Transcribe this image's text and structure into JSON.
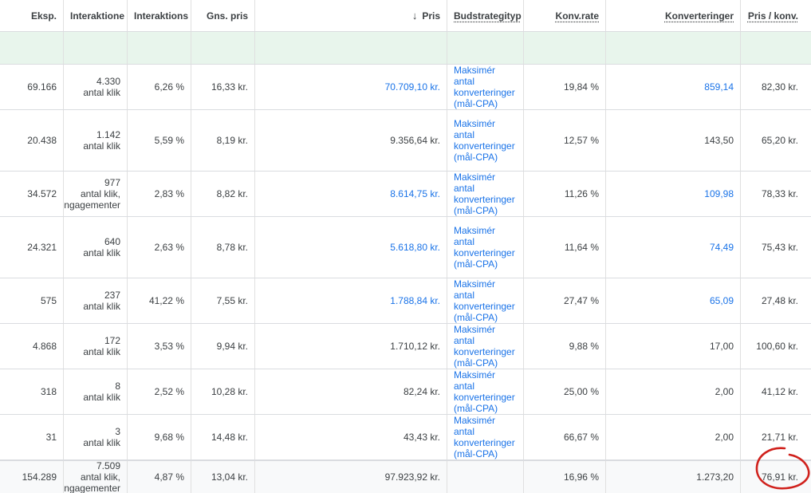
{
  "headers": {
    "eksp": "Eksp.",
    "interaktioner": "Interaktione",
    "interaktionsrate": "Interaktions",
    "gns_pris": "Gns. pris",
    "pris": "Pris",
    "budstrategi": "Budstrategityp",
    "konv_rate": "Konv.rate",
    "konverteringer": "Konverteringer",
    "pris_konv": "Pris / konv."
  },
  "sort_icon": "arrow-down-icon",
  "rows": [
    {
      "eksp": "69.166",
      "int_num": "4.330",
      "int_label": "antal klik",
      "int_rate": "6,26 %",
      "gns": "16,33 kr.",
      "pris": "70.709,10 kr.",
      "strategy": [
        "Maksimér",
        "antal",
        "konverteringer",
        "(mål-CPA)"
      ],
      "konv_rate": "19,84 %",
      "konv": "859,14",
      "pris_konv": "82,30 kr."
    },
    {
      "eksp": "20.438",
      "int_num": "1.142",
      "int_label": "antal klik",
      "int_rate": "5,59 %",
      "gns": "8,19 kr.",
      "pris": "9.356,64 kr.",
      "strategy": [
        "Maksimér",
        "antal",
        "konverteringer",
        "(mål-CPA)"
      ],
      "konv_rate": "12,57 %",
      "konv": "143,50",
      "pris_konv": "65,20 kr."
    },
    {
      "eksp": "34.572",
      "int_num": "977",
      "int_label": "antal klik,",
      "int_label2": "engagementer",
      "int_rate": "2,83 %",
      "gns": "8,82 kr.",
      "pris": "8.614,75 kr.",
      "strategy": [
        "Maksimér",
        "antal",
        "konverteringer",
        "(mål-CPA)"
      ],
      "konv_rate": "11,26 %",
      "konv": "109,98",
      "pris_konv": "78,33 kr."
    },
    {
      "eksp": "24.321",
      "int_num": "640",
      "int_label": "antal klik",
      "int_rate": "2,63 %",
      "gns": "8,78 kr.",
      "pris": "5.618,80 kr.",
      "strategy": [
        "Maksimér",
        "antal",
        "konverteringer",
        "(mål-CPA)"
      ],
      "konv_rate": "11,64 %",
      "konv": "74,49",
      "pris_konv": "75,43 kr."
    },
    {
      "eksp": "575",
      "int_num": "237",
      "int_label": "antal klik",
      "int_rate": "41,22 %",
      "gns": "7,55 kr.",
      "pris": "1.788,84 kr.",
      "strategy": [
        "Maksimér",
        "antal",
        "konverteringer",
        "(mål-CPA)"
      ],
      "konv_rate": "27,47 %",
      "konv": "65,09",
      "pris_konv": "27,48 kr."
    },
    {
      "eksp": "4.868",
      "int_num": "172",
      "int_label": "antal klik",
      "int_rate": "3,53 %",
      "gns": "9,94 kr.",
      "pris": "1.710,12 kr.",
      "strategy": [
        "Maksimér",
        "antal",
        "konverteringer",
        "(mål-CPA)"
      ],
      "konv_rate": "9,88 %",
      "konv": "17,00",
      "pris_konv": "100,60 kr."
    },
    {
      "eksp": "318",
      "int_num": "8",
      "int_label": "antal klik",
      "int_rate": "2,52 %",
      "gns": "10,28 kr.",
      "pris": "82,24 kr.",
      "strategy": [
        "Maksimér",
        "antal",
        "konverteringer",
        "(mål-CPA)"
      ],
      "konv_rate": "25,00 %",
      "konv": "2,00",
      "pris_konv": "41,12 kr."
    },
    {
      "eksp": "31",
      "int_num": "3",
      "int_label": "antal klik",
      "int_rate": "9,68 %",
      "gns": "14,48 kr.",
      "pris": "43,43 kr.",
      "strategy": [
        "Maksimér",
        "antal",
        "konverteringer",
        "(mål-CPA)"
      ],
      "konv_rate": "66,67 %",
      "konv": "2,00",
      "pris_konv": "21,71 kr."
    }
  ],
  "total": {
    "eksp": "154.289",
    "int_num": "7.509",
    "int_label": "antal klik,",
    "int_label2": "engagementer",
    "int_rate": "4,87 %",
    "gns": "13,04 kr.",
    "pris": "97.923,92 kr.",
    "konv_rate": "16,96 %",
    "konv": "1.273,20",
    "pris_konv": "76,91 kr."
  },
  "annotation": {
    "color": "#d0211c"
  },
  "colors": {
    "link": "#1a73e8",
    "filter_row": "#e8f5ec",
    "text": "#3c4043"
  }
}
